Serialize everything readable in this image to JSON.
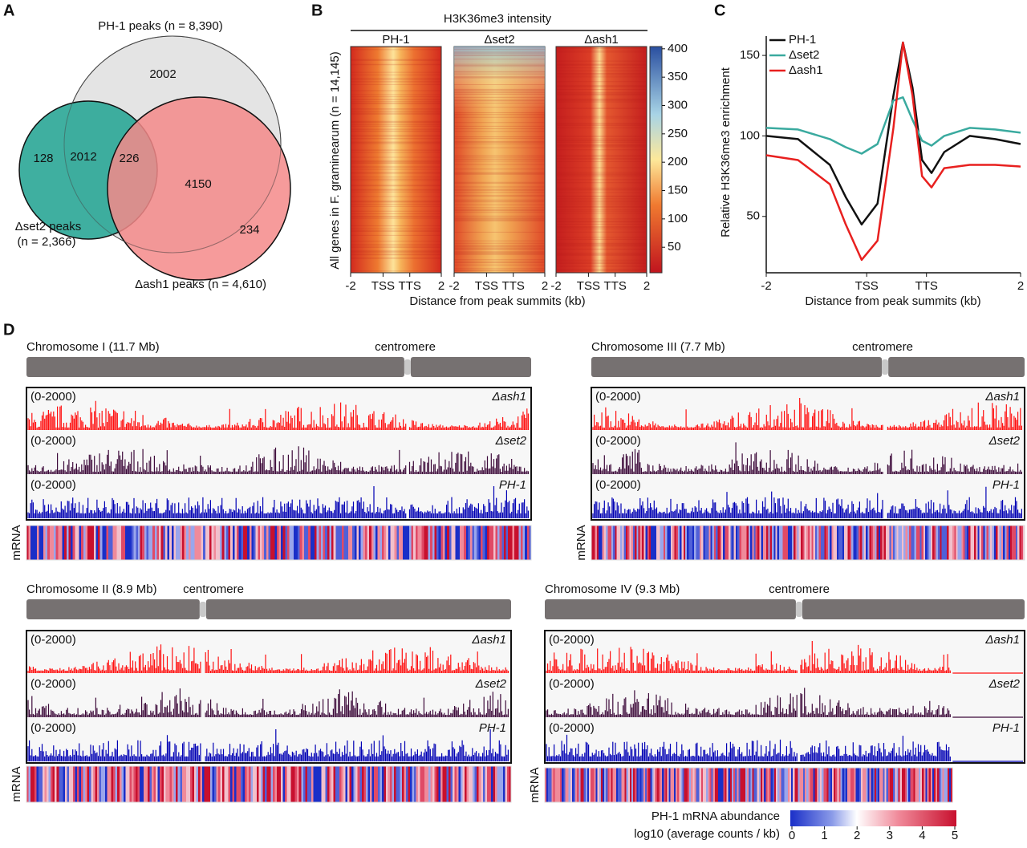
{
  "panel_a": {
    "label": "A",
    "sets": [
      {
        "name": "PH-1 peaks (n = 8,390)"
      },
      {
        "name": "Δset2 peaks",
        "n": "(n = 2,366)"
      },
      {
        "name": "Δash1 peaks (n = 4,610)"
      }
    ],
    "regions": [
      2002,
      128,
      2012,
      226,
      4150,
      234
    ]
  },
  "panel_b": {
    "label": "B",
    "title": "H3K36me3 intensity",
    "columns": [
      "PH-1",
      "Δset2",
      "Δash1"
    ],
    "ylabel": "All genes in F. graminearum (n = 14,145)",
    "xlim": [
      -2,
      2
    ],
    "xticks": [
      -2,
      {
        "value": -0.57,
        "label": "TSS"
      },
      {
        "value": 0.61,
        "label": "TTS"
      },
      2
    ],
    "xlabel": "Distance from peak summits (kb)",
    "colorbar": {
      "lim": [
        5,
        404
      ],
      "ticks": [
        50,
        100,
        150,
        200,
        250,
        300,
        350,
        400
      ]
    }
  },
  "chart_data": {
    "type": "line",
    "label": "C",
    "x": [
      -2,
      -1.5,
      -1,
      -0.75,
      -0.5,
      -0.25,
      0,
      0.15,
      0.3,
      0.45,
      0.6,
      0.8,
      1.2,
      1.6,
      2
    ],
    "series": [
      {
        "name": "PH-1",
        "color": "#111111",
        "values": [
          100,
          98,
          82,
          62,
          45,
          58,
          125,
          158,
          130,
          85,
          77,
          90,
          100,
          98,
          95
        ]
      },
      {
        "name": "Δset2",
        "color": "#3aaa9f",
        "values": [
          105,
          104,
          98,
          93,
          89,
          95,
          122,
          124,
          110,
          97,
          94,
          100,
          105,
          104,
          102
        ]
      },
      {
        "name": "Δash1",
        "color": "#e8201f",
        "values": [
          88,
          85,
          70,
          45,
          23,
          35,
          105,
          158,
          125,
          75,
          68,
          80,
          82,
          82,
          81
        ]
      }
    ],
    "xlim": [
      -2,
      2
    ],
    "xticks": [
      -2,
      {
        "value": -0.42,
        "label": "TSS"
      },
      {
        "value": 0.52,
        "label": "TTS"
      },
      2
    ],
    "ylim": [
      15,
      162
    ],
    "yticks": [
      50,
      100,
      150
    ],
    "ylabel": "Relative H3K36me3 enrichment",
    "xlabel": "Distance from peak summits (kb)",
    "legend": "upper left"
  },
  "panel_d": {
    "label": "D",
    "chromosomes": [
      {
        "name": "Chromosome I (11.7 Mb)",
        "centromere": "centromere",
        "tracks": [
          {
            "range": "(0-2000)",
            "name": "Δash1"
          },
          {
            "range": "(0-2000)",
            "name": "Δset2"
          },
          {
            "range": "(0-2000)",
            "name": "PH-1"
          }
        ],
        "mrna": "mRNA"
      },
      {
        "name": "Chromosome III (7.7 Mb)",
        "centromere": "centromere",
        "tracks": [
          {
            "range": "(0-2000)",
            "name": "Δash1"
          },
          {
            "range": "(0-2000)",
            "name": "Δset2"
          },
          {
            "range": "(0-2000)",
            "name": "PH-1"
          }
        ],
        "mrna": "mRNA"
      },
      {
        "name": "Chromosome II (8.9 Mb)",
        "centromere": "centromere",
        "tracks": [
          {
            "range": "(0-2000)",
            "name": "Δash1"
          },
          {
            "range": "(0-2000)",
            "name": "Δset2"
          },
          {
            "range": "(0-2000)",
            "name": "PH-1"
          }
        ],
        "mrna": "mRNA"
      },
      {
        "name": "Chromosome IV (9.3 Mb)",
        "centromere": "centromere",
        "tracks": [
          {
            "range": "(0-2000)",
            "name": "Δash1"
          },
          {
            "range": "(0-2000)",
            "name": "Δset2"
          },
          {
            "range": "(0-2000)",
            "name": "PH-1"
          }
        ],
        "mrna": "mRNA"
      }
    ],
    "legend": {
      "title": "PH-1 mRNA abundance",
      "unit": "log10 (average counts / kb)",
      "lim": [
        0,
        5
      ],
      "ticks": [
        0,
        1,
        2,
        3,
        4,
        5
      ]
    }
  }
}
